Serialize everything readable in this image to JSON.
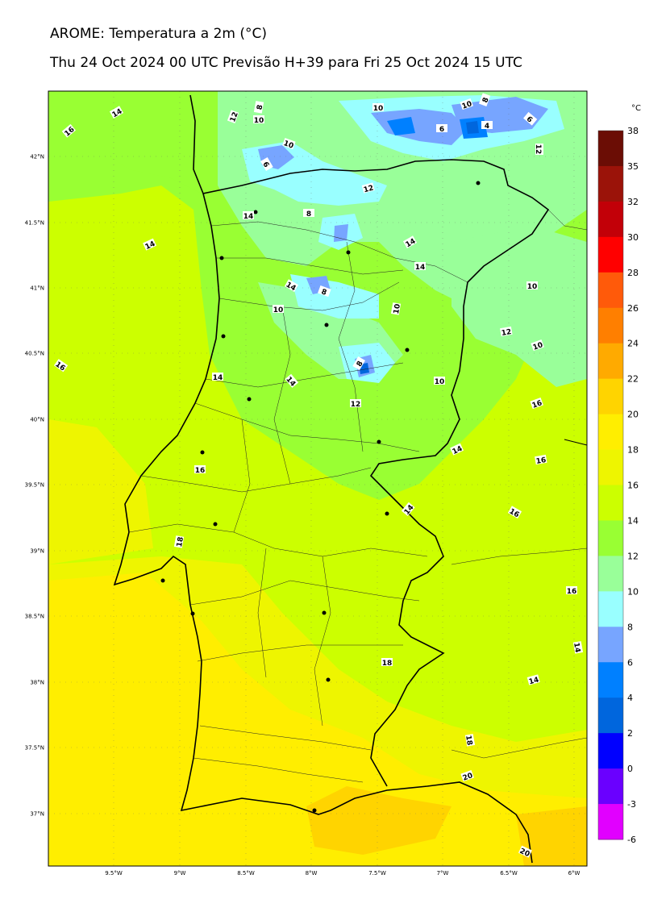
{
  "title": "AROME: Temperatura a 2m (°C)",
  "subtitle": "Thu 24 Oct 2024 00 UTC Previsão H+39 para Fri 25 Oct 2024 15 UTC",
  "axes": {
    "lat_ticks": [
      "42°N",
      "41.5°N",
      "41°N",
      "40.5°N",
      "40°N",
      "39.5°N",
      "39°N",
      "38.5°N",
      "38°N",
      "37.5°N",
      "37°N"
    ],
    "lon_ticks": [
      "9.5°W",
      "9°W",
      "8.5°W",
      "8°W",
      "7.5°W",
      "7°W",
      "6.5°W",
      "6°W"
    ]
  },
  "colorbar": {
    "unit": "°C",
    "levels": [
      "38",
      "35",
      "32",
      "30",
      "28",
      "26",
      "24",
      "22",
      "20",
      "18",
      "16",
      "14",
      "12",
      "10",
      "8",
      "6",
      "4",
      "2",
      "0",
      "-3",
      "-6"
    ],
    "colors": [
      "#6b0d05",
      "#9b1309",
      "#c20008",
      "#ff0000",
      "#ff5a0a",
      "#ff7f00",
      "#ffaa00",
      "#ffd400",
      "#ffee00",
      "#eef500",
      "#ccff00",
      "#99ff33",
      "#99ff99",
      "#99ffff",
      "#77a5ff",
      "#0080ff",
      "#0066dd",
      "#0000ff",
      "#6a00ff",
      "#e100ff"
    ]
  },
  "contour_labels": [
    "16",
    "14",
    "14",
    "14",
    "16",
    "12",
    "10",
    "8",
    "6",
    "10",
    "10",
    "6",
    "4",
    "6",
    "12",
    "10",
    "8",
    "8",
    "12",
    "14",
    "8",
    "14",
    "14",
    "10",
    "10",
    "10",
    "12",
    "10",
    "14",
    "8",
    "12",
    "14",
    "10",
    "16",
    "16",
    "14",
    "16",
    "16",
    "18",
    "14",
    "18",
    "14",
    "16",
    "14",
    "18",
    "20",
    "20"
  ]
}
